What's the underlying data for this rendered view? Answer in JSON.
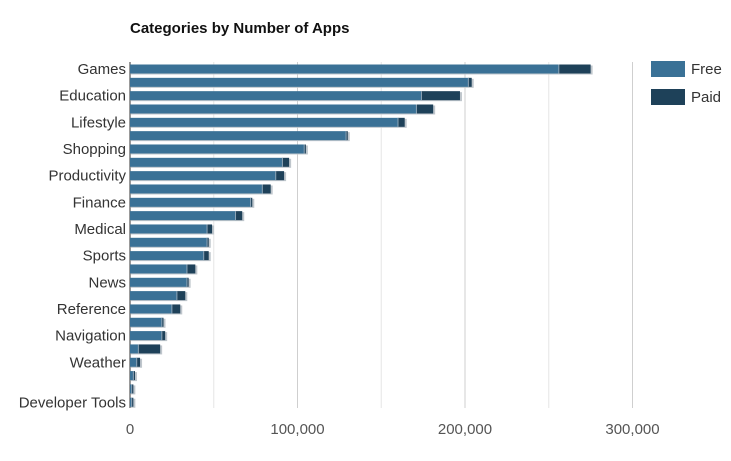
{
  "chart_data": {
    "type": "bar",
    "orientation": "horizontal",
    "stacked": true,
    "title": "Categories by Number of Apps",
    "xlabel": "",
    "ylabel": "",
    "xlim": [
      0,
      350000
    ],
    "x_ticks": [
      0,
      100000,
      200000,
      300000
    ],
    "x_tick_labels": [
      "0",
      "100,000",
      "200,000",
      "300,000"
    ],
    "grid": "vertical",
    "legend_position": "top-right",
    "categories": [
      "Games",
      "",
      "Education",
      "",
      "Lifestyle",
      "",
      "Shopping",
      "",
      "Productivity",
      "",
      "Finance",
      "",
      "Medical",
      "",
      "Sports",
      "",
      "News",
      "",
      "Reference",
      "",
      "Navigation",
      "",
      "Weather",
      "",
      "",
      "Developer Tools"
    ],
    "series": [
      {
        "name": "Free",
        "color": "#3a7196",
        "values": [
          256000,
          202000,
          174000,
          171000,
          160000,
          129000,
          104000,
          91000,
          87000,
          79000,
          72000,
          63000,
          46000,
          46000,
          44000,
          34000,
          34000,
          28000,
          25000,
          19000,
          19000,
          5000,
          4000,
          2000,
          1000,
          1000
        ]
      },
      {
        "name": "Paid",
        "color": "#1e4159",
        "values": [
          19000,
          2000,
          23000,
          10000,
          4000,
          1000,
          1000,
          4000,
          5000,
          5000,
          1000,
          4000,
          3000,
          1000,
          3000,
          5000,
          1000,
          5000,
          5000,
          1000,
          2000,
          13000,
          2000,
          1000,
          1000,
          1000
        ]
      }
    ]
  }
}
